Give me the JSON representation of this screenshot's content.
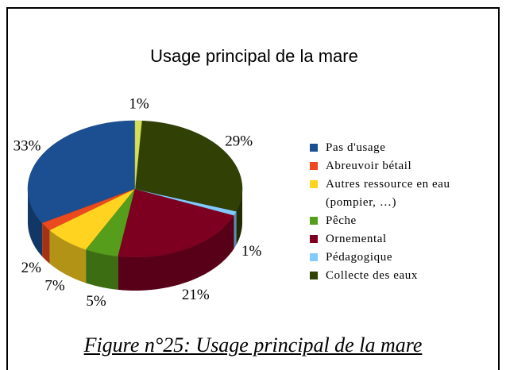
{
  "chart_data": {
    "type": "pie3d",
    "title": "Usage principal de la mare",
    "categories": [
      "Pas d'usage",
      "Abreuvoir bétail",
      "Autres ressource en eau (pompier, …)",
      "Pêche",
      "Ornemental",
      "Pédagogique",
      "Collecte des eaux",
      null
    ],
    "values": [
      33,
      2,
      7,
      5,
      21,
      1,
      29,
      1
    ],
    "value_labels": [
      "33%",
      "2%",
      "7%",
      "5%",
      "21%",
      "1%",
      "29%",
      "1%"
    ],
    "colors": [
      "#1c4f91",
      "#ea4a1e",
      "#ffd320",
      "#579d1c",
      "#7e0021",
      "#83caff",
      "#314004",
      "#d4e05a"
    ],
    "legend": "right"
  },
  "caption": "Figure n°25: Usage principal de la mare"
}
